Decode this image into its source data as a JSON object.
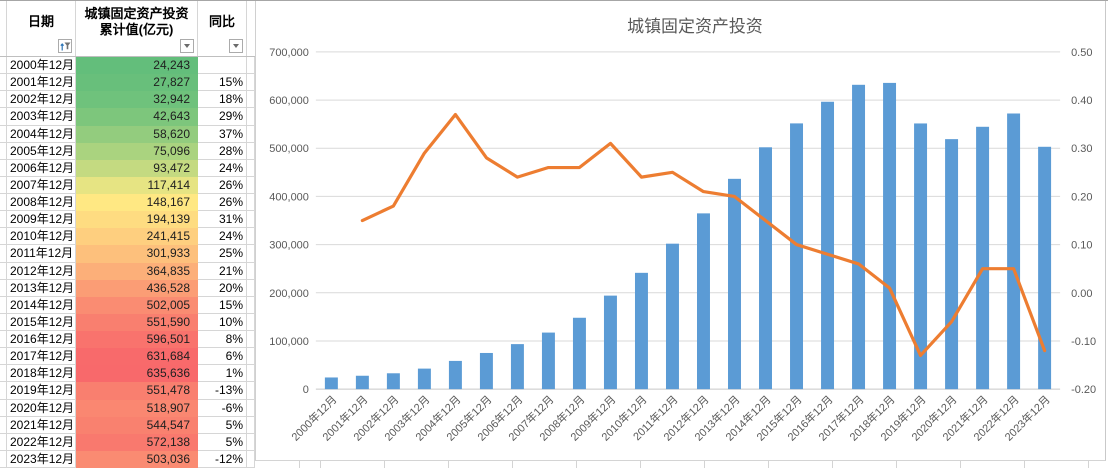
{
  "table": {
    "columns": [
      {
        "label": "日期",
        "filter_icon": "sort-asc-filter"
      },
      {
        "label": "城镇固定资产投资\n累计值(亿元)",
        "filter_icon": "dropdown"
      },
      {
        "label": "同比",
        "filter_icon": "dropdown"
      }
    ],
    "rows": [
      {
        "date": "2000年12月",
        "value": "24,243",
        "yoy": "",
        "fill": "#63BE7B"
      },
      {
        "date": "2001年12月",
        "value": "27,827",
        "yoy": "15%",
        "fill": "#68BF7B"
      },
      {
        "date": "2002年12月",
        "value": "32,942",
        "yoy": "18%",
        "fill": "#6FC27C"
      },
      {
        "date": "2003年12月",
        "value": "42,643",
        "yoy": "29%",
        "fill": "#7DC67C"
      },
      {
        "date": "2004年12月",
        "value": "58,620",
        "yoy": "37%",
        "fill": "#93CC7E"
      },
      {
        "date": "2005年12月",
        "value": "75,096",
        "yoy": "28%",
        "fill": "#AAD37F"
      },
      {
        "date": "2006年12月",
        "value": "93,472",
        "yoy": "24%",
        "fill": "#C4DA81"
      },
      {
        "date": "2007年12月",
        "value": "117,414",
        "yoy": "26%",
        "fill": "#E6E483"
      },
      {
        "date": "2008年12月",
        "value": "148,167",
        "yoy": "26%",
        "fill": "#FFE883"
      },
      {
        "date": "2009年12月",
        "value": "194,139",
        "yoy": "31%",
        "fill": "#FEDC81"
      },
      {
        "date": "2010年12月",
        "value": "241,415",
        "yoy": "24%",
        "fill": "#FECF7F"
      },
      {
        "date": "2011年12月",
        "value": "301,933",
        "yoy": "25%",
        "fill": "#FDC07C"
      },
      {
        "date": "2012年12月",
        "value": "364,835",
        "yoy": "21%",
        "fill": "#FCAF79"
      },
      {
        "date": "2013年12月",
        "value": "436,528",
        "yoy": "20%",
        "fill": "#FB9D75"
      },
      {
        "date": "2014年12月",
        "value": "502,005",
        "yoy": "15%",
        "fill": "#FA8C72"
      },
      {
        "date": "2015年12月",
        "value": "551,590",
        "yoy": "10%",
        "fill": "#F97F6F"
      },
      {
        "date": "2016年12月",
        "value": "596,501",
        "yoy": "8%",
        "fill": "#F9736D"
      },
      {
        "date": "2017年12月",
        "value": "631,684",
        "yoy": "6%",
        "fill": "#F86A6B"
      },
      {
        "date": "2018年12月",
        "value": "635,636",
        "yoy": "1%",
        "fill": "#F8696B"
      },
      {
        "date": "2019年12月",
        "value": "551,478",
        "yoy": "-13%",
        "fill": "#F97F6F"
      },
      {
        "date": "2020年12月",
        "value": "518,907",
        "yoy": "-6%",
        "fill": "#FA8771"
      },
      {
        "date": "2021年12月",
        "value": "544,547",
        "yoy": "5%",
        "fill": "#F9816F"
      },
      {
        "date": "2022年12月",
        "value": "572,138",
        "yoy": "5%",
        "fill": "#F9796E"
      },
      {
        "date": "2023年12月",
        "value": "503,036",
        "yoy": "-12%",
        "fill": "#FA8B72"
      }
    ]
  },
  "chart_data": {
    "type": "combo-bar-line",
    "title": "城镇固定资产投资",
    "categories": [
      "2000年12月",
      "2001年12月",
      "2002年12月",
      "2003年12月",
      "2004年12月",
      "2005年12月",
      "2006年12月",
      "2007年12月",
      "2008年12月",
      "2009年12月",
      "2010年12月",
      "2011年12月",
      "2012年12月",
      "2013年12月",
      "2014年12月",
      "2015年12月",
      "2016年12月",
      "2017年12月",
      "2018年12月",
      "2019年12月",
      "2020年12月",
      "2021年12月",
      "2022年12月",
      "2023年12月"
    ],
    "series": [
      {
        "name": "城镇固定资产投资累计值(亿元)",
        "type": "bar",
        "axis": "left",
        "color": "#5B9BD5",
        "values": [
          24243,
          27827,
          32942,
          42643,
          58620,
          75096,
          93472,
          117414,
          148167,
          194139,
          241415,
          301933,
          364835,
          436528,
          502005,
          551590,
          596501,
          631684,
          635636,
          551478,
          518907,
          544547,
          572138,
          503036
        ]
      },
      {
        "name": "同比",
        "type": "line",
        "axis": "right",
        "color": "#ED7D31",
        "values": [
          null,
          0.15,
          0.18,
          0.29,
          0.37,
          0.28,
          0.24,
          0.26,
          0.26,
          0.31,
          0.24,
          0.25,
          0.21,
          0.2,
          0.15,
          0.1,
          0.08,
          0.06,
          0.01,
          -0.13,
          -0.06,
          0.05,
          0.05,
          -0.12
        ]
      }
    ],
    "left_axis": {
      "min": 0,
      "max": 700000,
      "step": 100000,
      "labels": [
        "0",
        "100,000",
        "200,000",
        "300,000",
        "400,000",
        "500,000",
        "600,000",
        "700,000"
      ]
    },
    "right_axis": {
      "min": -0.2,
      "max": 0.5,
      "step": 0.1,
      "labels": [
        "-0.20",
        "-0.10",
        "0.00",
        "0.10",
        "0.20",
        "0.30",
        "0.40",
        "0.50"
      ]
    },
    "grid": true,
    "legend": "none",
    "x_label_rotation": 45
  },
  "colors": {
    "bar": "#5B9BD5",
    "line": "#ED7D31",
    "grid": "#D9D9D9",
    "axis_line": "#C6C6C6",
    "axis_text": "#595959",
    "table_grid": "#D6D6D6"
  }
}
